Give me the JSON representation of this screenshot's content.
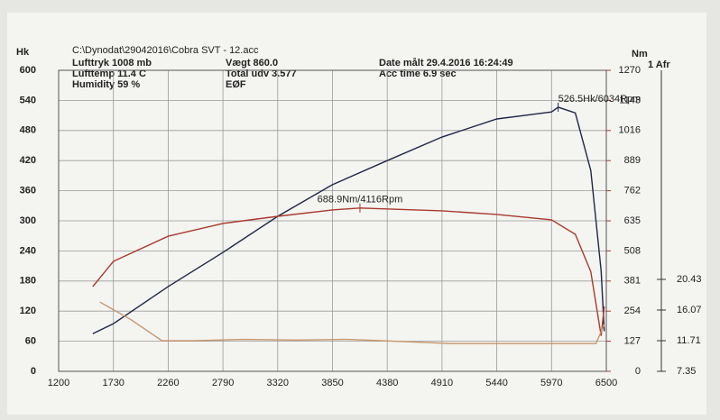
{
  "chart_data": {
    "type": "line",
    "header": [
      "C:\\Dynodat\\29042016\\Cobra SVT - 12.acc"
    ],
    "info": [
      [
        "Lufttryk  1008 mb",
        "Lufttemp  11.4 C",
        "Humidity   59 %"
      ],
      [
        "Vægt      860.0",
        "Total udv 3.577",
        "EØF"
      ],
      [
        "Date målt 29.4.2016 16:24:49",
        "Acc time  6.9 sec"
      ]
    ],
    "y_label": "Hk",
    "y2_label": "Nm",
    "y3_label": "1 Afr",
    "xlim": [
      1200,
      6500
    ],
    "xticks": [
      1200,
      1730,
      2260,
      2790,
      3320,
      3850,
      4380,
      4910,
      5440,
      5970,
      6500
    ],
    "ylim": [
      0,
      600
    ],
    "yticks": [
      0,
      60,
      120,
      180,
      240,
      300,
      360,
      420,
      480,
      540,
      600
    ],
    "y2lim": [
      0,
      1270
    ],
    "y2ticks": [
      0,
      127,
      254,
      381,
      508,
      635,
      762,
      889,
      1016,
      1143,
      1270
    ],
    "y3lim": [
      7.35,
      50.18
    ],
    "y3ticks": [
      7.35,
      11.71,
      16.07,
      20.43
    ],
    "grid": true,
    "series": [
      {
        "name": "Hk",
        "axis": "y",
        "color": "#1f2747",
        "x": [
          1530,
          1730,
          2260,
          2790,
          3320,
          3850,
          4380,
          4910,
          5440,
          5970,
          6034,
          6200,
          6350,
          6450,
          6480
        ],
        "values": [
          75,
          95,
          169,
          237,
          309,
          372,
          420,
          467,
          503,
          517,
          526.5,
          515,
          400,
          200,
          80
        ]
      },
      {
        "name": "Nm",
        "axis": "y2",
        "color": "#a83a2c",
        "x": [
          1530,
          1730,
          2260,
          2790,
          3320,
          3850,
          4116,
          4910,
          5440,
          5970,
          6200,
          6350,
          6450,
          6480
        ],
        "values": [
          357,
          464,
          570,
          624,
          654,
          681,
          688.9,
          677,
          662,
          639,
          578,
          420,
          150,
          274
        ]
      },
      {
        "name": "Afr",
        "axis": "y3",
        "color": "#c9956a",
        "x": [
          1600,
          1900,
          2200,
          2500,
          3000,
          3500,
          4000,
          4500,
          5000,
          5500,
          6000,
          6400,
          6480
        ],
        "values": [
          17.2,
          14.7,
          11.7,
          11.7,
          11.9,
          11.8,
          11.9,
          11.6,
          11.3,
          11.3,
          11.3,
          11.3,
          14.0
        ]
      }
    ],
    "annotations": [
      {
        "text": "526.5Hk/6034Rpm",
        "x": 6034,
        "y": 526.5,
        "axis": "y"
      },
      {
        "text": "688.9Nm/4116Rpm",
        "x": 4116,
        "y": 688.9,
        "axis": "y2"
      }
    ]
  }
}
